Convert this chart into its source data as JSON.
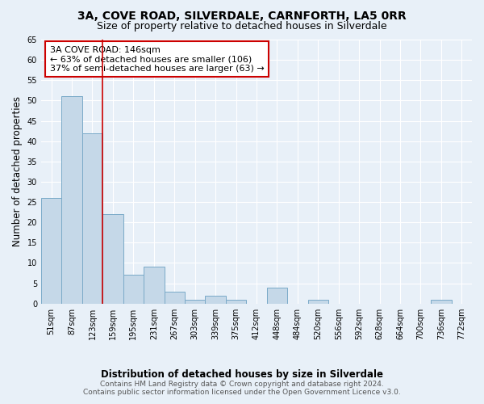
{
  "title": "3A, COVE ROAD, SILVERDALE, CARNFORTH, LA5 0RR",
  "subtitle": "Size of property relative to detached houses in Silverdale",
  "xlabel": "Distribution of detached houses by size in Silverdale",
  "ylabel": "Number of detached properties",
  "bar_labels": [
    "51sqm",
    "87sqm",
    "123sqm",
    "159sqm",
    "195sqm",
    "231sqm",
    "267sqm",
    "303sqm",
    "339sqm",
    "375sqm",
    "412sqm",
    "448sqm",
    "484sqm",
    "520sqm",
    "556sqm",
    "592sqm",
    "628sqm",
    "664sqm",
    "700sqm",
    "736sqm",
    "772sqm"
  ],
  "bar_values": [
    26,
    51,
    42,
    22,
    7,
    9,
    3,
    1,
    2,
    1,
    0,
    4,
    0,
    1,
    0,
    0,
    0,
    0,
    0,
    1,
    0
  ],
  "bar_color": "#c5d8e8",
  "bar_edge_color": "#7aaac8",
  "background_color": "#e8f0f8",
  "ylim": [
    0,
    65
  ],
  "yticks": [
    0,
    5,
    10,
    15,
    20,
    25,
    30,
    35,
    40,
    45,
    50,
    55,
    60,
    65
  ],
  "vline_x": 2.5,
  "vline_color": "#cc0000",
  "annotation_text": "3A COVE ROAD: 146sqm\n← 63% of detached houses are smaller (106)\n37% of semi-detached houses are larger (63) →",
  "annotation_box_color": "#ffffff",
  "annotation_box_edge": "#cc0000",
  "footer_line1": "Contains HM Land Registry data © Crown copyright and database right 2024.",
  "footer_line2": "Contains public sector information licensed under the Open Government Licence v3.0.",
  "title_fontsize": 10,
  "subtitle_fontsize": 9,
  "axis_label_fontsize": 8.5,
  "tick_fontsize": 7,
  "annotation_fontsize": 8,
  "footer_fontsize": 6.5
}
